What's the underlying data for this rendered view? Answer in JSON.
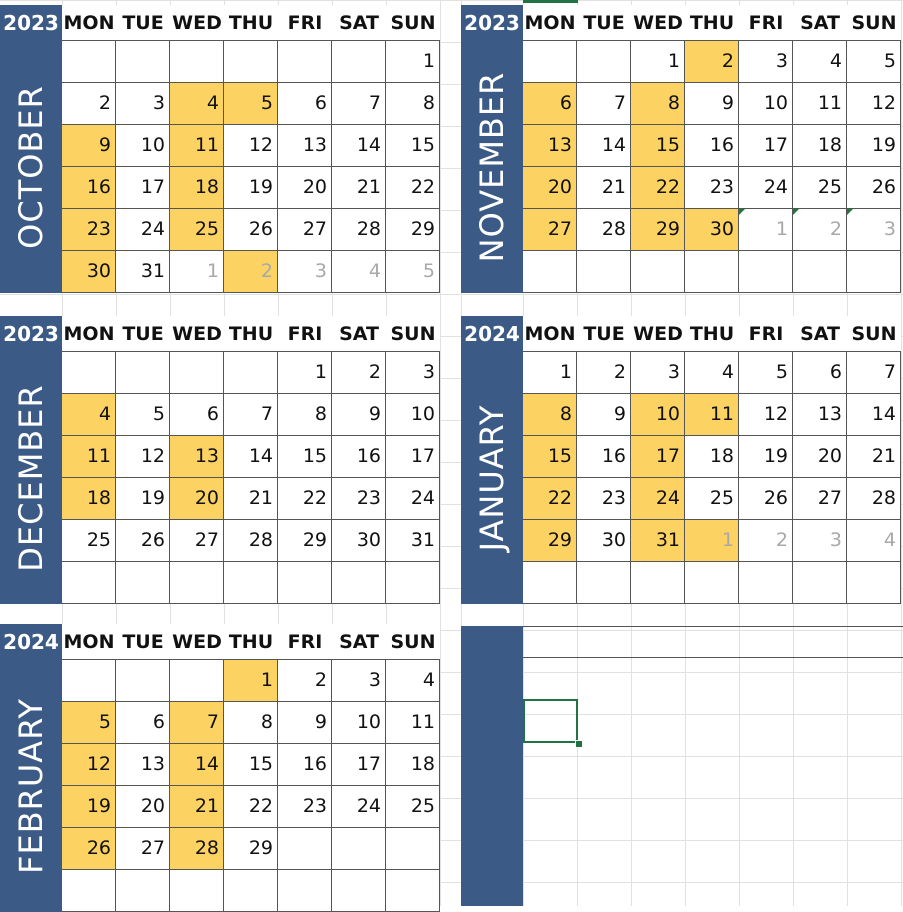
{
  "dow": [
    "MON",
    "TUE",
    "WED",
    "THU",
    "FRI",
    "SAT",
    "SUN"
  ],
  "colors": {
    "band": "#3b5b86",
    "highlight": "#fcd263",
    "other_month_text": "#a8a8a8",
    "selection": "#217346"
  },
  "calendars": [
    {
      "year": "2023",
      "month": "OCTOBER",
      "days": [
        {
          "d": "",
          "t": "e"
        },
        {
          "d": "",
          "t": "e"
        },
        {
          "d": "",
          "t": "e"
        },
        {
          "d": "",
          "t": "e"
        },
        {
          "d": "",
          "t": "e"
        },
        {
          "d": "",
          "t": "e"
        },
        {
          "d": "1",
          "t": "n"
        },
        {
          "d": "2",
          "t": "n"
        },
        {
          "d": "3",
          "t": "n"
        },
        {
          "d": "4",
          "t": "h"
        },
        {
          "d": "5",
          "t": "h"
        },
        {
          "d": "6",
          "t": "n"
        },
        {
          "d": "7",
          "t": "n"
        },
        {
          "d": "8",
          "t": "n"
        },
        {
          "d": "9",
          "t": "h"
        },
        {
          "d": "10",
          "t": "n"
        },
        {
          "d": "11",
          "t": "h"
        },
        {
          "d": "12",
          "t": "n"
        },
        {
          "d": "13",
          "t": "n"
        },
        {
          "d": "14",
          "t": "n"
        },
        {
          "d": "15",
          "t": "n"
        },
        {
          "d": "16",
          "t": "h"
        },
        {
          "d": "17",
          "t": "n"
        },
        {
          "d": "18",
          "t": "h"
        },
        {
          "d": "19",
          "t": "n"
        },
        {
          "d": "20",
          "t": "n"
        },
        {
          "d": "21",
          "t": "n"
        },
        {
          "d": "22",
          "t": "n"
        },
        {
          "d": "23",
          "t": "h"
        },
        {
          "d": "24",
          "t": "n"
        },
        {
          "d": "25",
          "t": "h"
        },
        {
          "d": "26",
          "t": "n"
        },
        {
          "d": "27",
          "t": "n"
        },
        {
          "d": "28",
          "t": "n"
        },
        {
          "d": "29",
          "t": "n"
        },
        {
          "d": "30",
          "t": "h"
        },
        {
          "d": "31",
          "t": "n"
        },
        {
          "d": "1",
          "t": "o"
        },
        {
          "d": "2",
          "t": "oh"
        },
        {
          "d": "3",
          "t": "o"
        },
        {
          "d": "4",
          "t": "o"
        },
        {
          "d": "5",
          "t": "o"
        }
      ]
    },
    {
      "year": "2023",
      "month": "NOVEMBER",
      "days": [
        {
          "d": "",
          "t": "e"
        },
        {
          "d": "",
          "t": "e"
        },
        {
          "d": "1",
          "t": "n"
        },
        {
          "d": "2",
          "t": "h"
        },
        {
          "d": "3",
          "t": "n"
        },
        {
          "d": "4",
          "t": "n"
        },
        {
          "d": "5",
          "t": "n"
        },
        {
          "d": "6",
          "t": "h"
        },
        {
          "d": "7",
          "t": "n"
        },
        {
          "d": "8",
          "t": "h"
        },
        {
          "d": "9",
          "t": "n"
        },
        {
          "d": "10",
          "t": "n"
        },
        {
          "d": "11",
          "t": "n"
        },
        {
          "d": "12",
          "t": "n"
        },
        {
          "d": "13",
          "t": "h"
        },
        {
          "d": "14",
          "t": "n"
        },
        {
          "d": "15",
          "t": "h"
        },
        {
          "d": "16",
          "t": "n"
        },
        {
          "d": "17",
          "t": "n"
        },
        {
          "d": "18",
          "t": "n"
        },
        {
          "d": "19",
          "t": "n"
        },
        {
          "d": "20",
          "t": "h"
        },
        {
          "d": "21",
          "t": "n"
        },
        {
          "d": "22",
          "t": "h"
        },
        {
          "d": "23",
          "t": "n"
        },
        {
          "d": "24",
          "t": "n"
        },
        {
          "d": "25",
          "t": "n"
        },
        {
          "d": "26",
          "t": "n"
        },
        {
          "d": "27",
          "t": "h"
        },
        {
          "d": "28",
          "t": "n"
        },
        {
          "d": "29",
          "t": "h"
        },
        {
          "d": "30",
          "t": "h"
        },
        {
          "d": "1",
          "t": "on"
        },
        {
          "d": "2",
          "t": "on"
        },
        {
          "d": "3",
          "t": "on"
        },
        {
          "d": "",
          "t": "e"
        },
        {
          "d": "",
          "t": "e"
        },
        {
          "d": "",
          "t": "e"
        },
        {
          "d": "",
          "t": "e"
        },
        {
          "d": "",
          "t": "e"
        },
        {
          "d": "",
          "t": "e"
        },
        {
          "d": "",
          "t": "e"
        }
      ]
    },
    {
      "year": "2023",
      "month": "DECEMBER",
      "days": [
        {
          "d": "",
          "t": "e"
        },
        {
          "d": "",
          "t": "e"
        },
        {
          "d": "",
          "t": "e"
        },
        {
          "d": "",
          "t": "e"
        },
        {
          "d": "1",
          "t": "n"
        },
        {
          "d": "2",
          "t": "n"
        },
        {
          "d": "3",
          "t": "n"
        },
        {
          "d": "4",
          "t": "h"
        },
        {
          "d": "5",
          "t": "n"
        },
        {
          "d": "6",
          "t": "n"
        },
        {
          "d": "7",
          "t": "n"
        },
        {
          "d": "8",
          "t": "n"
        },
        {
          "d": "9",
          "t": "n"
        },
        {
          "d": "10",
          "t": "n"
        },
        {
          "d": "11",
          "t": "h"
        },
        {
          "d": "12",
          "t": "n"
        },
        {
          "d": "13",
          "t": "h"
        },
        {
          "d": "14",
          "t": "n"
        },
        {
          "d": "15",
          "t": "n"
        },
        {
          "d": "16",
          "t": "n"
        },
        {
          "d": "17",
          "t": "n"
        },
        {
          "d": "18",
          "t": "h"
        },
        {
          "d": "19",
          "t": "n"
        },
        {
          "d": "20",
          "t": "h"
        },
        {
          "d": "21",
          "t": "n"
        },
        {
          "d": "22",
          "t": "n"
        },
        {
          "d": "23",
          "t": "n"
        },
        {
          "d": "24",
          "t": "n"
        },
        {
          "d": "25",
          "t": "n"
        },
        {
          "d": "26",
          "t": "n"
        },
        {
          "d": "27",
          "t": "n"
        },
        {
          "d": "28",
          "t": "n"
        },
        {
          "d": "29",
          "t": "n"
        },
        {
          "d": "30",
          "t": "n"
        },
        {
          "d": "31",
          "t": "n"
        },
        {
          "d": "",
          "t": "e"
        },
        {
          "d": "",
          "t": "e"
        },
        {
          "d": "",
          "t": "e"
        },
        {
          "d": "",
          "t": "e"
        },
        {
          "d": "",
          "t": "e"
        },
        {
          "d": "",
          "t": "e"
        },
        {
          "d": "",
          "t": "e"
        }
      ]
    },
    {
      "year": "2024",
      "month": "JANUARY",
      "days": [
        {
          "d": "1",
          "t": "n"
        },
        {
          "d": "2",
          "t": "n"
        },
        {
          "d": "3",
          "t": "n"
        },
        {
          "d": "4",
          "t": "n"
        },
        {
          "d": "5",
          "t": "n"
        },
        {
          "d": "6",
          "t": "n"
        },
        {
          "d": "7",
          "t": "n"
        },
        {
          "d": "8",
          "t": "h"
        },
        {
          "d": "9",
          "t": "n"
        },
        {
          "d": "10",
          "t": "h"
        },
        {
          "d": "11",
          "t": "h"
        },
        {
          "d": "12",
          "t": "n"
        },
        {
          "d": "13",
          "t": "n"
        },
        {
          "d": "14",
          "t": "n"
        },
        {
          "d": "15",
          "t": "h"
        },
        {
          "d": "16",
          "t": "n"
        },
        {
          "d": "17",
          "t": "h"
        },
        {
          "d": "18",
          "t": "n"
        },
        {
          "d": "19",
          "t": "n"
        },
        {
          "d": "20",
          "t": "n"
        },
        {
          "d": "21",
          "t": "n"
        },
        {
          "d": "22",
          "t": "h"
        },
        {
          "d": "23",
          "t": "n"
        },
        {
          "d": "24",
          "t": "h"
        },
        {
          "d": "25",
          "t": "n"
        },
        {
          "d": "26",
          "t": "n"
        },
        {
          "d": "27",
          "t": "n"
        },
        {
          "d": "28",
          "t": "n"
        },
        {
          "d": "29",
          "t": "h"
        },
        {
          "d": "30",
          "t": "n"
        },
        {
          "d": "31",
          "t": "h"
        },
        {
          "d": "1",
          "t": "oh"
        },
        {
          "d": "2",
          "t": "o"
        },
        {
          "d": "3",
          "t": "o"
        },
        {
          "d": "4",
          "t": "o"
        },
        {
          "d": "",
          "t": "e"
        },
        {
          "d": "",
          "t": "e"
        },
        {
          "d": "",
          "t": "e"
        },
        {
          "d": "",
          "t": "e"
        },
        {
          "d": "",
          "t": "e"
        },
        {
          "d": "",
          "t": "e"
        },
        {
          "d": "",
          "t": "e"
        }
      ]
    },
    {
      "year": "2024",
      "month": "FEBRUARY",
      "days": [
        {
          "d": "",
          "t": "e"
        },
        {
          "d": "",
          "t": "e"
        },
        {
          "d": "",
          "t": "e"
        },
        {
          "d": "1",
          "t": "h"
        },
        {
          "d": "2",
          "t": "n"
        },
        {
          "d": "3",
          "t": "n"
        },
        {
          "d": "4",
          "t": "n"
        },
        {
          "d": "5",
          "t": "h"
        },
        {
          "d": "6",
          "t": "n"
        },
        {
          "d": "7",
          "t": "h"
        },
        {
          "d": "8",
          "t": "n"
        },
        {
          "d": "9",
          "t": "n"
        },
        {
          "d": "10",
          "t": "n"
        },
        {
          "d": "11",
          "t": "n"
        },
        {
          "d": "12",
          "t": "h"
        },
        {
          "d": "13",
          "t": "n"
        },
        {
          "d": "14",
          "t": "h"
        },
        {
          "d": "15",
          "t": "n"
        },
        {
          "d": "16",
          "t": "n"
        },
        {
          "d": "17",
          "t": "n"
        },
        {
          "d": "18",
          "t": "n"
        },
        {
          "d": "19",
          "t": "h"
        },
        {
          "d": "20",
          "t": "n"
        },
        {
          "d": "21",
          "t": "h"
        },
        {
          "d": "22",
          "t": "n"
        },
        {
          "d": "23",
          "t": "n"
        },
        {
          "d": "24",
          "t": "n"
        },
        {
          "d": "25",
          "t": "n"
        },
        {
          "d": "26",
          "t": "h"
        },
        {
          "d": "27",
          "t": "n"
        },
        {
          "d": "28",
          "t": "h"
        },
        {
          "d": "29",
          "t": "n"
        },
        {
          "d": "",
          "t": "e"
        },
        {
          "d": "",
          "t": "e"
        },
        {
          "d": "",
          "t": "e"
        },
        {
          "d": "",
          "t": "e"
        },
        {
          "d": "",
          "t": "e"
        },
        {
          "d": "",
          "t": "e"
        },
        {
          "d": "",
          "t": "e"
        },
        {
          "d": "",
          "t": "e"
        },
        {
          "d": "",
          "t": "e"
        },
        {
          "d": "",
          "t": "e"
        }
      ]
    }
  ]
}
